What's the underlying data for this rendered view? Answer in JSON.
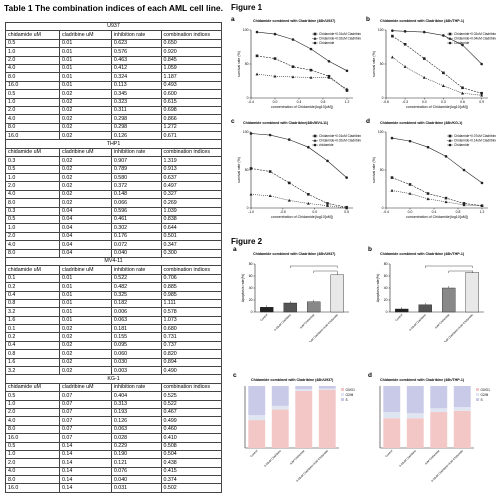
{
  "table": {
    "title": "Table 1 The combination indices of each AML cell line.",
    "headers": [
      "chidamide uM",
      "cladribine uM",
      "inhibition rate",
      "combination indices"
    ],
    "sections": [
      {
        "name": "U937",
        "rows": [
          [
            "0.5",
            "0.01",
            "0.623",
            "0.650"
          ],
          [
            "1.0",
            "0.01",
            "0.576",
            "0.920"
          ],
          [
            "2.0",
            "0.01",
            "0.463",
            "0.845"
          ],
          [
            "4.0",
            "0.01",
            "0.412",
            "1.059"
          ],
          [
            "8.0",
            "0.01",
            "0.324",
            "1.187"
          ],
          [
            "16.0",
            "0.01",
            "0.113",
            "0.493"
          ],
          [
            "0.5",
            "0.02",
            "0.345",
            "0.600"
          ],
          [
            "1.0",
            "0.02",
            "0.323",
            "0.615"
          ],
          [
            "2.0",
            "0.02",
            "0.311",
            "0.698"
          ],
          [
            "4.0",
            "0.02",
            "0.298",
            "0.866"
          ],
          [
            "8.0",
            "0.02",
            "0.298",
            "1.272"
          ],
          [
            "16.0",
            "0.02",
            "0.126",
            "0.671"
          ]
        ]
      },
      {
        "name": "THP1",
        "rows": [
          [
            "0.3",
            "0.02",
            "0.907",
            "1.319"
          ],
          [
            "0.5",
            "0.02",
            "0.789",
            "0.913"
          ],
          [
            "1.0",
            "0.02",
            "0.580",
            "0.637"
          ],
          [
            "2.0",
            "0.02",
            "0.372",
            "0.497"
          ],
          [
            "4.0",
            "0.02",
            "0.148",
            "0.327"
          ],
          [
            "8.0",
            "0.02",
            "0.066",
            "0.269"
          ],
          [
            "0.3",
            "0.04",
            "0.596",
            "1.039"
          ],
          [
            "0.5",
            "0.04",
            "0.461",
            "0.838"
          ],
          [
            "1.0",
            "0.04",
            "0.302",
            "0.644"
          ],
          [
            "2.0",
            "0.04",
            "0.176",
            "0.501"
          ],
          [
            "4.0",
            "0.04",
            "0.072",
            "0.347"
          ],
          [
            "8.0",
            "0.04",
            "0.040",
            "0.300"
          ]
        ]
      },
      {
        "name": "MV4-11",
        "rows": [
          [
            "0.1",
            "0.01",
            "0.522",
            "0.706"
          ],
          [
            "0.2",
            "0.01",
            "0.482",
            "0.885"
          ],
          [
            "0.4",
            "0.01",
            "0.325",
            "0.985"
          ],
          [
            "0.8",
            "0.01",
            "0.182",
            "1.111"
          ],
          [
            "3.2",
            "0.01",
            "0.006",
            "0.578"
          ],
          [
            "1.6",
            "0.01",
            "0.063",
            "1.073"
          ],
          [
            "0.1",
            "0.02",
            "0.181",
            "0.680"
          ],
          [
            "0.2",
            "0.02",
            "0.155",
            "0.731"
          ],
          [
            "0.4",
            "0.02",
            "0.095",
            "0.737"
          ],
          [
            "0.8",
            "0.02",
            "0.060",
            "0.820"
          ],
          [
            "1.6",
            "0.02",
            "0.030",
            "0.894"
          ],
          [
            "3.2",
            "0.02",
            "0.003",
            "0.490"
          ]
        ]
      },
      {
        "name": "KG-1",
        "rows": [
          [
            "chidamide uM",
            "cladribine uM",
            "inhibition rate",
            "combination indices"
          ],
          [
            "0.5",
            "0.07",
            "0.404",
            "0.525"
          ],
          [
            "1.0",
            "0.07",
            "0.313",
            "0.522"
          ],
          [
            "2.0",
            "0.07",
            "0.193",
            "0.467"
          ],
          [
            "4.0",
            "0.07",
            "0.126",
            "0.499"
          ],
          [
            "8.0",
            "0.07",
            "0.063",
            "0.460"
          ],
          [
            "16.0",
            "0.07",
            "0.028",
            "0.410"
          ],
          [
            "0.5",
            "0.14",
            "0.229",
            "0.508"
          ],
          [
            "1.0",
            "0.14",
            "0.190",
            "0.504"
          ],
          [
            "2.0",
            "0.14",
            "0.121",
            "0.438"
          ],
          [
            "4.0",
            "0.14",
            "0.076",
            "0.415"
          ],
          [
            "8.0",
            "0.14",
            "0.040",
            "0.374"
          ],
          [
            "16.0",
            "0.14",
            "0.031",
            "0.502"
          ]
        ]
      }
    ]
  },
  "figure1": {
    "title": "Figure 1",
    "panels": [
      {
        "label": "a",
        "title": "Chidamide combined with Cladribine (48h/U937)",
        "ylabel": "survival rate (%)",
        "xlabel": "concentration of Chidamide(log10[uM])",
        "legend": [
          "Chidamide+0.01uM Cladribine",
          "Chidamide+0.02uM Cladribine",
          "Chidamide"
        ]
      },
      {
        "label": "b",
        "title": "Chidamide combined with Cladribine (48h/THP-1)",
        "ylabel": "survival rate (%)",
        "xlabel": "concentration of Chidamide(log10[uM])",
        "legend": [
          "Chidamide+0.02uM Cladribine",
          "Chidamide+0.04uM Cladribine",
          "Chidamide"
        ]
      },
      {
        "label": "c",
        "title": "Chidamide combined with Cladribine(48h/MV4-11)",
        "ylabel": "survival rate (%)",
        "xlabel": "concentration of Chidamide(log10[uM])",
        "legend": [
          "Chidamide+0.01uM Cladribine",
          "Chidamide+0.02uM Cladribine",
          "chidamide"
        ]
      },
      {
        "label": "d",
        "title": "Chidamide combined with Cladribine (48h/KG-1)",
        "ylabel": "survival rate (%)",
        "xlabel": "concentration of Chidamide(log10[uM])",
        "legend": [
          "Chidamide+0.07uM Cladribine",
          "Chidamide+0.14uM Cladribine",
          "Chidamide"
        ]
      }
    ]
  },
  "figure2": {
    "title": "Figure 2",
    "panels": [
      {
        "label": "a",
        "title": "Chidamide combined with Cladribine (48h/U937)",
        "ylabel": "Apoptosis rate(%)"
      },
      {
        "label": "b",
        "title": "Chidamide combined with Cladribine (48h/THP-1)",
        "ylabel": "Apoptosis rate(%)"
      },
      {
        "label": "c",
        "title": "Chidamide combined with Cladribine (48h/U937)",
        "legend": [
          "G0/G1",
          "G2/M",
          "S"
        ]
      },
      {
        "label": "d",
        "title": "Chidamide combined with Cladribine (48h/THP-1)",
        "legend": [
          "G0/G1",
          "G2/M",
          "S"
        ]
      }
    ]
  },
  "chart_data": [
    {
      "type": "line",
      "panel": "1a",
      "xlim": [
        -0.4,
        1.3
      ],
      "ylim": [
        0,
        100
      ],
      "xticks": [
        "-0.4",
        "0.0",
        "0.4",
        "0.8",
        "1.2"
      ],
      "yticks": [
        "0",
        "50",
        "100"
      ],
      "series": [
        {
          "name": "Chidamide+0.01uM Cladribine",
          "x": [
            -0.3,
            0.0,
            0.3,
            0.6,
            0.9,
            1.2
          ],
          "y": [
            62,
            58,
            46,
            41,
            32,
            11
          ]
        },
        {
          "name": "Chidamide+0.02uM Cladribine",
          "x": [
            -0.3,
            0.0,
            0.3,
            0.6,
            0.9,
            1.2
          ],
          "y": [
            35,
            32,
            31,
            30,
            30,
            13
          ]
        },
        {
          "name": "Chidamide",
          "x": [
            -0.3,
            0.0,
            0.3,
            0.6,
            0.9,
            1.2
          ],
          "y": [
            97,
            94,
            86,
            72,
            54,
            40
          ]
        }
      ]
    },
    {
      "type": "line",
      "panel": "1b",
      "xlim": [
        -0.6,
        1.0
      ],
      "ylim": [
        0,
        100
      ],
      "xticks": [
        "-0.6",
        "-0.3",
        "0.0",
        "0.3",
        "0.6",
        "0.9"
      ],
      "yticks": [
        "0",
        "50",
        "100"
      ],
      "series": [
        {
          "name": "Chidamide+0.02uM Cladribine",
          "x": [
            -0.5,
            -0.3,
            0.0,
            0.3,
            0.6,
            0.9
          ],
          "y": [
            91,
            79,
            58,
            37,
            15,
            7
          ]
        },
        {
          "name": "Chidamide+0.04uM Cladribine",
          "x": [
            -0.5,
            -0.3,
            0.0,
            0.3,
            0.6,
            0.9
          ],
          "y": [
            60,
            46,
            30,
            18,
            7,
            4
          ]
        },
        {
          "name": "Chidamide",
          "x": [
            -0.5,
            -0.3,
            0.0,
            0.3,
            0.6,
            0.9
          ],
          "y": [
            99,
            98,
            97,
            92,
            78,
            50
          ]
        }
      ]
    },
    {
      "type": "line",
      "panel": "1c",
      "xlim": [
        -1.0,
        0.6
      ],
      "ylim": [
        0,
        100
      ],
      "xticks": [
        "-1.0",
        "-0.5",
        "0.0",
        "0.5"
      ],
      "yticks": [
        "0",
        "50",
        "100"
      ],
      "series": [
        {
          "name": "Chidamide+0.01uM Cladribine",
          "x": [
            -1.0,
            -0.7,
            -0.4,
            -0.1,
            0.2,
            0.5
          ],
          "y": [
            52,
            48,
            33,
            18,
            6,
            1
          ]
        },
        {
          "name": "Chidamide+0.02uM Cladribine",
          "x": [
            -1.0,
            -0.7,
            -0.4,
            -0.1,
            0.2,
            0.5
          ],
          "y": [
            18,
            16,
            10,
            6,
            3,
            0
          ]
        },
        {
          "name": "chidamide",
          "x": [
            -1.0,
            -0.7,
            -0.4,
            -0.1,
            0.2,
            0.5
          ],
          "y": [
            98,
            96,
            90,
            80,
            62,
            40
          ]
        }
      ]
    },
    {
      "type": "line",
      "panel": "1d",
      "xlim": [
        -0.4,
        1.3
      ],
      "ylim": [
        0,
        100
      ],
      "xticks": [
        "-0.4",
        "0.0",
        "0.4",
        "0.8",
        "1.2"
      ],
      "yticks": [
        "0",
        "50",
        "100"
      ],
      "series": [
        {
          "name": "Chidamide+0.07uM Cladribine",
          "x": [
            -0.3,
            0.0,
            0.3,
            0.6,
            0.9,
            1.2
          ],
          "y": [
            40,
            31,
            19,
            13,
            6,
            3
          ]
        },
        {
          "name": "Chidamide+0.14uM Cladribine",
          "x": [
            -0.3,
            0.0,
            0.3,
            0.6,
            0.9,
            1.2
          ],
          "y": [
            23,
            19,
            12,
            8,
            4,
            3
          ]
        },
        {
          "name": "Chidamide",
          "x": [
            -0.3,
            0.0,
            0.3,
            0.6,
            0.9,
            1.2
          ],
          "y": [
            92,
            88,
            80,
            68,
            50,
            33
          ]
        }
      ]
    },
    {
      "type": "bar",
      "panel": "2a",
      "ylim": [
        0,
        80
      ],
      "yticks": [
        "0",
        "20",
        "40",
        "60",
        "80"
      ],
      "categories": [
        "Control",
        "0.02uM Cladribine",
        "4uM Chidamide",
        "0.02uM Cladribine+4uM Chidamide"
      ],
      "values": [
        8,
        15,
        17,
        62
      ]
    },
    {
      "type": "bar",
      "panel": "2b",
      "ylim": [
        0,
        80
      ],
      "yticks": [
        "0",
        "20",
        "40",
        "60",
        "80"
      ],
      "categories": [
        "Control",
        "0.02uM Cladribine",
        "4uM Chidamide",
        "0.02uM Cladribine+4uM Chidamide"
      ],
      "values": [
        5,
        12,
        40,
        66
      ]
    },
    {
      "type": "bar",
      "panel": "2c",
      "stacked": true,
      "ylim": [
        0,
        100
      ],
      "categories": [
        "Control",
        "0.02uM Cladribine",
        "4uM Chidamide",
        "0.02uM Cladribine+4uM Chidamide"
      ],
      "series": [
        {
          "name": "G0/G1",
          "values": [
            45,
            62,
            92,
            94
          ]
        },
        {
          "name": "G2/M",
          "values": [
            8,
            6,
            3,
            2
          ]
        },
        {
          "name": "S",
          "values": [
            47,
            32,
            5,
            4
          ]
        }
      ]
    },
    {
      "type": "bar",
      "panel": "2d",
      "stacked": true,
      "ylim": [
        0,
        100
      ],
      "categories": [
        "Control",
        "0.02uM Cladribine",
        "4uM Chidamide",
        "0.02uM Cladribine+4uM Chidamide"
      ],
      "series": [
        {
          "name": "G0/G1",
          "values": [
            48,
            48,
            58,
            60
          ]
        },
        {
          "name": "G2/M",
          "values": [
            10,
            8,
            6,
            6
          ]
        },
        {
          "name": "S",
          "values": [
            42,
            44,
            36,
            34
          ]
        }
      ]
    }
  ],
  "colors": {
    "g0g1": "#f4c7c7",
    "g2m": "#dfe6f2",
    "s": "#c9c9e8",
    "line": "#222222"
  }
}
